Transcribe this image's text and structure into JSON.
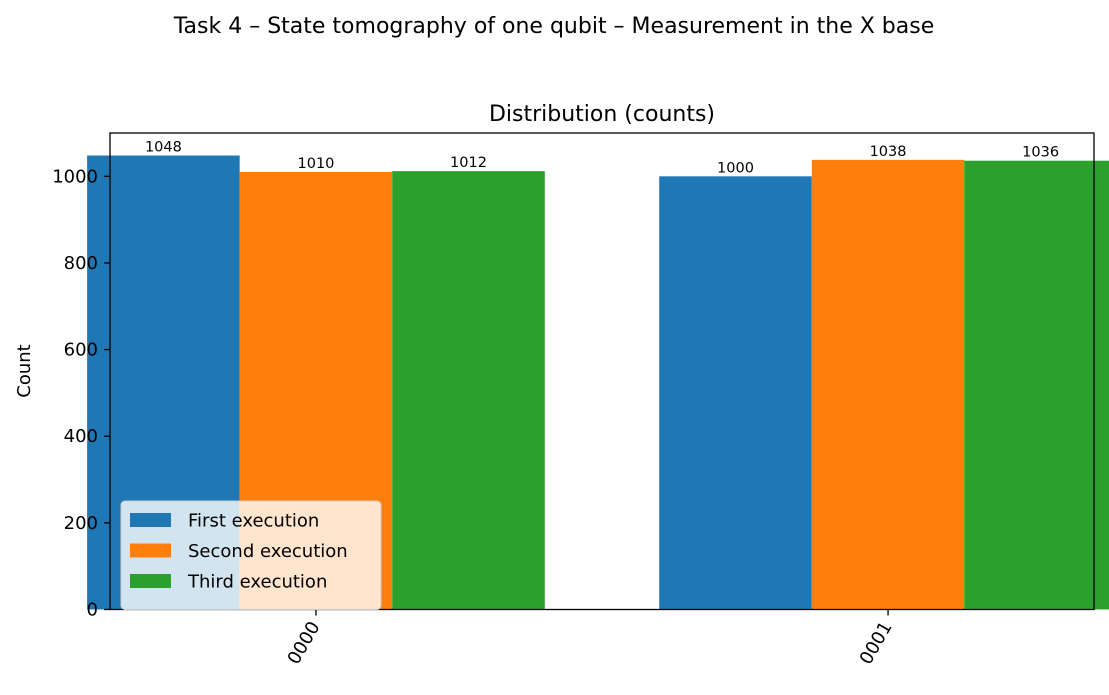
{
  "figure": {
    "suptitle": "Task 4 – State tomography of one qubit – Measurement in the X base"
  },
  "chart_data": {
    "type": "bar",
    "title": "Distribution (counts)",
    "xlabel": "",
    "ylabel": "Count",
    "categories": [
      "0000",
      "0001"
    ],
    "series": [
      {
        "name": "First execution",
        "values": [
          1048,
          1000
        ],
        "color": "#1f77b4"
      },
      {
        "name": "Second execution",
        "values": [
          1010,
          1038
        ],
        "color": "#ff7f0e"
      },
      {
        "name": "Third execution",
        "values": [
          1012,
          1036
        ],
        "color": "#2ca02c"
      }
    ],
    "ylim": [
      0,
      1100
    ],
    "yticks": [
      0,
      200,
      400,
      600,
      800,
      1000
    ],
    "tick_rotation": -60,
    "grid": false,
    "legend_position": "lower-left",
    "data_labels": true
  }
}
